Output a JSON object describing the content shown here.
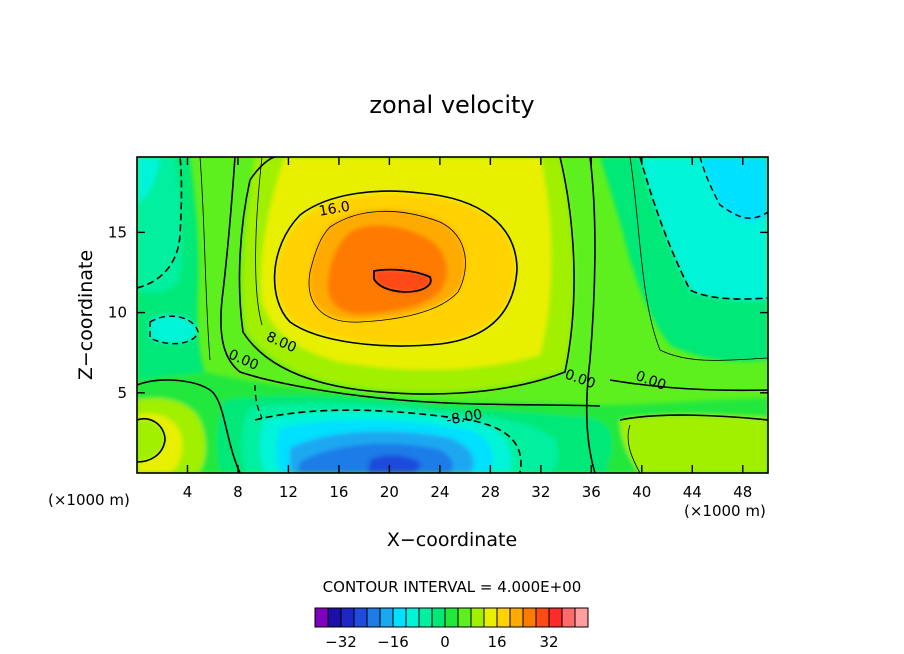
{
  "chart_data": {
    "type": "heatmap",
    "title": "zonal velocity",
    "xlabel": "X−coordinate",
    "ylabel": "Z−coordinate",
    "x_unit": "(×1000 m)",
    "y_unit": "(×1000 m)",
    "xlim": [
      0,
      50
    ],
    "ylim": [
      0,
      19.7
    ],
    "x_ticks": [
      4,
      8,
      12,
      16,
      20,
      24,
      28,
      32,
      36,
      40,
      44,
      48
    ],
    "y_ticks": [
      5,
      10,
      15
    ],
    "contour_interval_label": "CONTOUR INTERVAL = 4.000E+00",
    "contour_labels": [
      {
        "text": "16.0",
        "x": 15.7,
        "y": 16.2
      },
      {
        "text": "8.00",
        "x": 11.3,
        "y": 7.9
      },
      {
        "text": "0.00",
        "x": 8.3,
        "y": 6.8
      },
      {
        "text": "-8.00",
        "x": 26.0,
        "y": 3.2
      },
      {
        "text": "0.00",
        "x": 35.0,
        "y": 5.6
      },
      {
        "text": "0.00",
        "x": 40.6,
        "y": 5.5
      }
    ],
    "colorbar": {
      "levels": [
        -36,
        -32,
        -28,
        -24,
        -20,
        -16,
        -12,
        -8,
        -4,
        0,
        4,
        8,
        12,
        16,
        20,
        24,
        28,
        32,
        36
      ],
      "colors": [
        "#7f00bf",
        "#1c0fa8",
        "#1f26c8",
        "#1f4cdc",
        "#1e7be8",
        "#1aa8f0",
        "#00e0ff",
        "#00f5d8",
        "#00f0a0",
        "#00e878",
        "#22e83c",
        "#5ef01e",
        "#a0f000",
        "#e8f000",
        "#ffd200",
        "#ffaa00",
        "#ff7a00",
        "#ff4a14",
        "#ff2a2a",
        "#ff6b6b",
        "#ff9e9e"
      ],
      "tick_labels": [
        "−32",
        "−16",
        "0",
        "16",
        "32"
      ],
      "tick_values": [
        -32,
        -16,
        0,
        16,
        32
      ]
    }
  }
}
